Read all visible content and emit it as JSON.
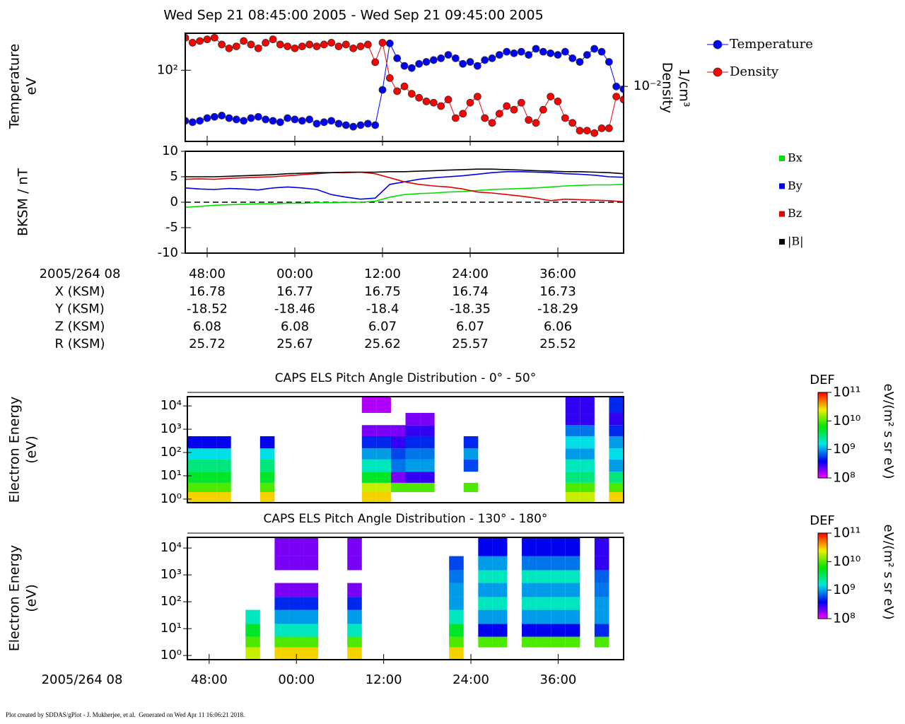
{
  "chart_data": [
    {
      "type": "line",
      "title": "Wed Sep 21 08:45:00 2005 - Wed Sep 21 09:45:00 2005",
      "log_y": true,
      "ylabel": [
        "Temperature",
        "eV"
      ],
      "y2label": [
        "Density",
        "1/cm³"
      ],
      "x": [
        45,
        46,
        47,
        48,
        49,
        50,
        51,
        52,
        53,
        54,
        55,
        56,
        57,
        58,
        59,
        60,
        61,
        62,
        63,
        64,
        65,
        66,
        67,
        68,
        69,
        70,
        71,
        72,
        73,
        74,
        75,
        76,
        77,
        78,
        79,
        80,
        81,
        82,
        83,
        84,
        85,
        86,
        87,
        88,
        89,
        90,
        91,
        92,
        93,
        94,
        95,
        96,
        97,
        98,
        99,
        100,
        101,
        102,
        103,
        104,
        105
      ],
      "xlim": [
        45,
        105
      ],
      "xticks": [
        48,
        60,
        72,
        84,
        96
      ],
      "ylim": [
        21,
        225
      ],
      "yticks": [
        {
          "value": 100,
          "label": "10²"
        }
      ],
      "y2lim": [
        0.003,
        0.032
      ],
      "y2ticks": [
        {
          "value": 0.01,
          "label": "10⁻²"
        }
      ],
      "legend": "outside right",
      "series": [
        {
          "name": "Temperature",
          "color": "#0000ff",
          "values": [
            33,
            32,
            33,
            35,
            36,
            37,
            35,
            34,
            33,
            35,
            36,
            34,
            33,
            32,
            35,
            34,
            33,
            34,
            31,
            32,
            33,
            31,
            30,
            29,
            30,
            31,
            30,
            65,
            180,
            130,
            110,
            105,
            115,
            120,
            125,
            130,
            140,
            130,
            115,
            120,
            110,
            125,
            130,
            140,
            150,
            145,
            150,
            140,
            160,
            150,
            145,
            140,
            150,
            130,
            120,
            140,
            160,
            150,
            120,
            70,
            66
          ]
        },
        {
          "name": "Density",
          "color": "#ff0000",
          "axis": "y2",
          "values": [
            0.029,
            0.026,
            0.027,
            0.028,
            0.029,
            0.025,
            0.023,
            0.024,
            0.027,
            0.025,
            0.023,
            0.026,
            0.028,
            0.025,
            0.024,
            0.023,
            0.024,
            0.025,
            0.024,
            0.025,
            0.026,
            0.024,
            0.025,
            0.023,
            0.024,
            0.025,
            0.017,
            0.026,
            0.012,
            0.009,
            0.01,
            0.0085,
            0.0078,
            0.0072,
            0.007,
            0.0065,
            0.0075,
            0.005,
            0.0055,
            0.007,
            0.008,
            0.005,
            0.0045,
            0.0055,
            0.0065,
            0.006,
            0.007,
            0.0048,
            0.0045,
            0.006,
            0.008,
            0.0072,
            0.005,
            0.0045,
            0.0038,
            0.0038,
            0.0036,
            0.004,
            0.004,
            0.008,
            0.0075
          ]
        }
      ]
    },
    {
      "type": "line",
      "ylabel": "BKSM / nT",
      "x": [
        45,
        47,
        49,
        51,
        53,
        55,
        57,
        59,
        61,
        63,
        65,
        67,
        69,
        71,
        73,
        75,
        77,
        79,
        81,
        83,
        85,
        87,
        89,
        91,
        93,
        95,
        97,
        99,
        101,
        103,
        105
      ],
      "xlim": [
        45,
        105
      ],
      "xticks": [
        {
          "value": 48,
          "label": "48:00"
        },
        {
          "value": 60,
          "label": "00:00"
        },
        {
          "value": 72,
          "label": "12:00"
        },
        {
          "value": 84,
          "label": "24:00"
        },
        {
          "value": 96,
          "label": "36:00"
        }
      ],
      "ylim": [
        -10,
        10
      ],
      "yticks": [
        -10,
        -5,
        0,
        5,
        10
      ],
      "legend": "outside right",
      "series": [
        {
          "name": "Bx",
          "color": "#00e000",
          "values": [
            -1.0,
            -0.8,
            -0.6,
            -0.5,
            -0.4,
            -0.3,
            -0.3,
            -0.2,
            -0.2,
            -0.1,
            -0.1,
            0.0,
            0.0,
            0.2,
            1.0,
            1.5,
            1.7,
            1.8,
            2.0,
            2.1,
            2.3,
            2.5,
            2.6,
            2.7,
            2.8,
            3.0,
            3.2,
            3.3,
            3.4,
            3.4,
            3.5
          ]
        },
        {
          "name": "By",
          "color": "#0000e0",
          "values": [
            2.8,
            2.6,
            2.5,
            2.7,
            2.6,
            2.4,
            2.8,
            3.0,
            2.8,
            2.5,
            1.5,
            1.0,
            0.6,
            0.8,
            3.5,
            4.0,
            4.5,
            4.8,
            5.0,
            5.2,
            5.5,
            5.8,
            6.0,
            6.0,
            5.9,
            5.8,
            5.6,
            5.5,
            5.3,
            5.0,
            4.9
          ]
        },
        {
          "name": "Bz",
          "color": "#e00000",
          "values": [
            4.5,
            4.6,
            4.5,
            4.7,
            4.8,
            4.9,
            5.0,
            5.2,
            5.4,
            5.6,
            5.8,
            5.8,
            5.9,
            5.6,
            4.8,
            4.0,
            3.5,
            3.2,
            3.0,
            2.6,
            2.0,
            1.8,
            1.5,
            1.2,
            0.8,
            0.3,
            0.6,
            0.5,
            0.4,
            0.3,
            0.1
          ]
        },
        {
          "name": "|B|",
          "color": "#000000",
          "values": [
            5.0,
            5.0,
            5.0,
            5.1,
            5.2,
            5.3,
            5.4,
            5.6,
            5.7,
            5.8,
            5.8,
            5.9,
            5.9,
            5.9,
            6.0,
            6.0,
            6.1,
            6.2,
            6.3,
            6.4,
            6.5,
            6.5,
            6.4,
            6.3,
            6.2,
            6.1,
            6.0,
            6.0,
            5.9,
            5.8,
            5.6
          ]
        }
      ]
    },
    {
      "type": "heatmap",
      "title": "CAPS ELS Pitch Angle Distribution - 0° - 50°",
      "ylabel": [
        "Electron Energy",
        "(eV)"
      ],
      "log_y": true,
      "x_bins": [
        45,
        47,
        49,
        51,
        53,
        55,
        57,
        59,
        61,
        63,
        65,
        67,
        69,
        71,
        73,
        75,
        77,
        79,
        81,
        83,
        85,
        87,
        89,
        91,
        93,
        95,
        97,
        99,
        101,
        103,
        105
      ],
      "xlim": [
        45,
        105
      ],
      "y_bins": [
        0.7,
        2,
        5,
        15,
        50,
        150,
        500,
        1500,
        5000,
        25000
      ],
      "ylim": [
        0.7,
        25000
      ],
      "yticks": [
        {
          "value": 1,
          "label": "10⁰"
        },
        {
          "value": 10,
          "label": "10¹"
        },
        {
          "value": 100,
          "label": "10²"
        },
        {
          "value": 1000,
          "label": "10³"
        },
        {
          "value": 10000,
          "label": "10⁴"
        }
      ],
      "colorbar": {
        "label": "DEF",
        "units": "eV/(m² s sr eV)",
        "lim": [
          100000000.0,
          100000000000.0
        ],
        "log": true,
        "ticks": [
          {
            "value": 100000000.0,
            "label": "10⁸"
          },
          {
            "value": 1000000000.0,
            "label": "10⁹"
          },
          {
            "value": 10000000000.0,
            "label": "10¹⁰"
          },
          {
            "value": 100000000000.0,
            "label": "10¹¹"
          }
        ]
      },
      "z": [
        [
          30000000000.0,
          10000000000.0,
          5000000000.0,
          3000000000.0,
          1500000000.0,
          400000000.0,
          null,
          null,
          null
        ],
        [
          30000000000.0,
          10000000000.0,
          5000000000.0,
          3000000000.0,
          1500000000.0,
          400000000.0,
          null,
          null,
          null
        ],
        [
          30000000000.0,
          10000000000.0,
          5000000000.0,
          3000000000.0,
          1500000000.0,
          400000000.0,
          null,
          null,
          null
        ],
        null,
        null,
        [
          30000000000.0,
          10000000000.0,
          5000000000.0,
          3000000000.0,
          1500000000.0,
          400000000.0,
          null,
          null,
          null
        ],
        null,
        null,
        null,
        null,
        null,
        null,
        [
          30000000000.0,
          20000000000.0,
          5000000000.0,
          2000000000.0,
          1000000000.0,
          500000000.0,
          200000000.0,
          null,
          150000000.0
        ],
        [
          30000000000.0,
          20000000000.0,
          5000000000.0,
          2000000000.0,
          1000000000.0,
          500000000.0,
          200000000.0,
          null,
          150000000.0
        ],
        [
          null,
          10000000000.0,
          200000000.0,
          800000000.0,
          600000000.0,
          300000000.0,
          200000000.0,
          null,
          null
        ],
        [
          null,
          10000000000.0,
          300000000.0,
          1000000000.0,
          800000000.0,
          500000000.0,
          300000000.0,
          200000000.0,
          null
        ],
        [
          null,
          10000000000.0,
          300000000.0,
          1000000000.0,
          800000000.0,
          500000000.0,
          300000000.0,
          200000000.0,
          null
        ],
        null,
        null,
        [
          null,
          10000000000.0,
          null,
          600000000.0,
          1000000000.0,
          500000000.0,
          null,
          null,
          null
        ],
        null,
        null,
        null,
        null,
        null,
        null,
        [
          20000000000.0,
          10000000000.0,
          3000000000.0,
          2000000000.0,
          1000000000.0,
          1500000000.0,
          800000000.0,
          300000000.0,
          300000000.0
        ],
        [
          20000000000.0,
          10000000000.0,
          3000000000.0,
          2000000000.0,
          1000000000.0,
          1500000000.0,
          800000000.0,
          300000000.0,
          300000000.0
        ],
        null,
        [
          30000000000.0,
          10000000000.0,
          3000000000.0,
          1000000000.0,
          1500000000.0,
          1000000000.0,
          500000000.0,
          300000000.0,
          500000000.0
        ]
      ]
    },
    {
      "type": "heatmap",
      "title": "CAPS ELS Pitch Angle Distribution - 130° - 180°",
      "ylabel": [
        "Electron Energy",
        "(eV)"
      ],
      "log_y": true,
      "xlabel": "2005/264 08",
      "x_bins": [
        45,
        47,
        49,
        51,
        53,
        55,
        57,
        59,
        61,
        63,
        65,
        67,
        69,
        71,
        73,
        75,
        77,
        79,
        81,
        83,
        85,
        87,
        89,
        91,
        93,
        95,
        97,
        99,
        101,
        103,
        105
      ],
      "xlim": [
        45,
        105
      ],
      "xticks": [
        {
          "value": 48,
          "label": "48:00"
        },
        {
          "value": 60,
          "label": "00:00"
        },
        {
          "value": 72,
          "label": "12:00"
        },
        {
          "value": 84,
          "label": "24:00"
        },
        {
          "value": 96,
          "label": "36:00"
        }
      ],
      "y_bins": [
        0.7,
        2,
        5,
        15,
        50,
        150,
        500,
        1500,
        5000,
        25000
      ],
      "ylim": [
        0.7,
        25000
      ],
      "yticks": [
        {
          "value": 1,
          "label": "10⁰"
        },
        {
          "value": 10,
          "label": "10¹"
        },
        {
          "value": 100,
          "label": "10²"
        },
        {
          "value": 1000,
          "label": "10³"
        },
        {
          "value": 10000,
          "label": "10⁴"
        }
      ],
      "colorbar": {
        "label": "DEF",
        "units": "eV/(m² s sr eV)",
        "lim": [
          100000000.0,
          100000000000.0
        ],
        "log": true,
        "ticks": [
          {
            "value": 100000000.0,
            "label": "10⁸"
          },
          {
            "value": 1000000000.0,
            "label": "10⁹"
          },
          {
            "value": 10000000000.0,
            "label": "10¹⁰"
          },
          {
            "value": 100000000000.0,
            "label": "10¹¹"
          }
        ]
      },
      "z": [
        null,
        null,
        null,
        null,
        [
          20000000000.0,
          10000000000.0,
          5000000000.0,
          2000000000.0,
          null,
          null,
          null,
          null,
          null
        ],
        null,
        [
          30000000000.0,
          10000000000.0,
          2000000000.0,
          1000000000.0,
          500000000.0,
          200000000.0,
          null,
          200000000.0,
          200000000.0
        ],
        [
          30000000000.0,
          10000000000.0,
          2000000000.0,
          1000000000.0,
          500000000.0,
          200000000.0,
          null,
          200000000.0,
          200000000.0
        ],
        [
          30000000000.0,
          10000000000.0,
          2000000000.0,
          1000000000.0,
          500000000.0,
          200000000.0,
          null,
          200000000.0,
          200000000.0
        ],
        null,
        null,
        [
          30000000000.0,
          10000000000.0,
          2000000000.0,
          1000000000.0,
          500000000.0,
          200000000.0,
          null,
          200000000.0,
          200000000.0
        ],
        null,
        null,
        null,
        null,
        null,
        null,
        [
          30000000000.0,
          10000000000.0,
          5000000000.0,
          2000000000.0,
          1000000000.0,
          1000000000.0,
          800000000.0,
          600000000.0,
          null
        ],
        null,
        [
          null,
          10000000000.0,
          400000000.0,
          1000000000.0,
          2000000000.0,
          1000000000.0,
          2000000000.0,
          1000000000.0,
          400000000.0
        ],
        [
          null,
          10000000000.0,
          400000000.0,
          1000000000.0,
          2000000000.0,
          1000000000.0,
          2000000000.0,
          1000000000.0,
          400000000.0
        ],
        null,
        [
          null,
          10000000000.0,
          400000000.0,
          1000000000.0,
          2000000000.0,
          1000000000.0,
          2000000000.0,
          800000000.0,
          400000000.0
        ],
        [
          null,
          10000000000.0,
          400000000.0,
          1000000000.0,
          2000000000.0,
          1000000000.0,
          2000000000.0,
          800000000.0,
          400000000.0
        ],
        [
          null,
          10000000000.0,
          400000000.0,
          1000000000.0,
          2000000000.0,
          1000000000.0,
          2000000000.0,
          800000000.0,
          400000000.0
        ],
        [
          null,
          10000000000.0,
          400000000.0,
          1000000000.0,
          2000000000.0,
          1000000000.0,
          2000000000.0,
          800000000.0,
          400000000.0
        ],
        null,
        [
          null,
          10000000000.0,
          500000000.0,
          1000000000.0,
          1000000000.0,
          800000000.0,
          700000000.0,
          300000000.0,
          300000000.0
        ],
        null
      ]
    }
  ],
  "ephemeris": {
    "header": "2005/264 08",
    "rows": [
      {
        "label": "X (KSM)",
        "values": [
          16.78,
          16.77,
          16.75,
          16.74,
          16.73
        ]
      },
      {
        "label": "Y (KSM)",
        "values": [
          -18.52,
          -18.46,
          -18.4,
          -18.35,
          -18.29
        ]
      },
      {
        "label": "Z (KSM)",
        "values": [
          6.08,
          6.08,
          6.07,
          6.07,
          6.06
        ]
      },
      {
        "label": "R (KSM)",
        "values": [
          25.72,
          25.67,
          25.62,
          25.57,
          25.52
        ]
      }
    ]
  },
  "footer": "Plot created by SDDAS/gPlot - J. Mukherjee, et al.  Generated on Wed Apr 11 16:06:21 2018."
}
